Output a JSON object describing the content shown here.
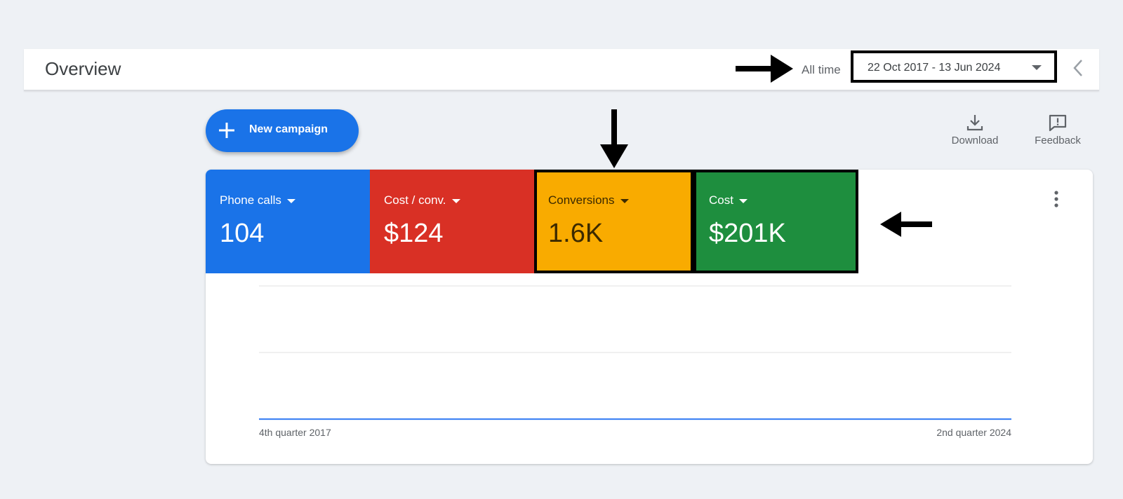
{
  "header": {
    "title": "Overview",
    "range_label": "All time",
    "date_range": "22 Oct 2017 - 13 Jun 2024"
  },
  "toolbar": {
    "new_campaign_label": "New campaign",
    "download_label": "Download",
    "feedback_label": "Feedback"
  },
  "metrics": [
    {
      "label": "Phone calls",
      "value": "104",
      "color": "#1a73e8"
    },
    {
      "label": "Cost / conv.",
      "value": "$124",
      "color": "#d93025"
    },
    {
      "label": "Conversions",
      "value": "1.6K",
      "color": "#f9ab00"
    },
    {
      "label": "Cost",
      "value": "$201K",
      "color": "#1e8e3e"
    }
  ],
  "chart_data": {
    "type": "line",
    "x_tick_labels": [
      "4th quarter 2017",
      "2nd quarter 2024"
    ],
    "grid": true,
    "y_range": [
      0,
      100
    ],
    "series": [
      {
        "color": "#4285f4",
        "values": [
          0,
          0,
          0,
          0,
          0,
          0,
          0,
          0,
          0,
          0,
          0,
          0,
          0,
          0,
          0,
          0,
          0,
          0,
          0,
          0,
          0,
          0,
          0,
          0,
          0,
          0,
          0,
          0,
          0,
          0,
          0,
          0,
          0,
          0,
          0,
          0,
          0,
          0,
          0,
          0,
          0,
          0,
          0,
          0,
          0,
          0,
          0,
          0,
          0,
          0,
          0,
          0,
          0,
          0,
          0,
          0,
          0,
          0,
          0,
          0,
          0,
          0,
          0,
          0,
          0,
          0,
          0,
          0,
          0,
          0,
          0,
          0,
          0,
          0,
          0,
          0,
          0,
          0,
          0,
          0
        ]
      }
    ]
  }
}
